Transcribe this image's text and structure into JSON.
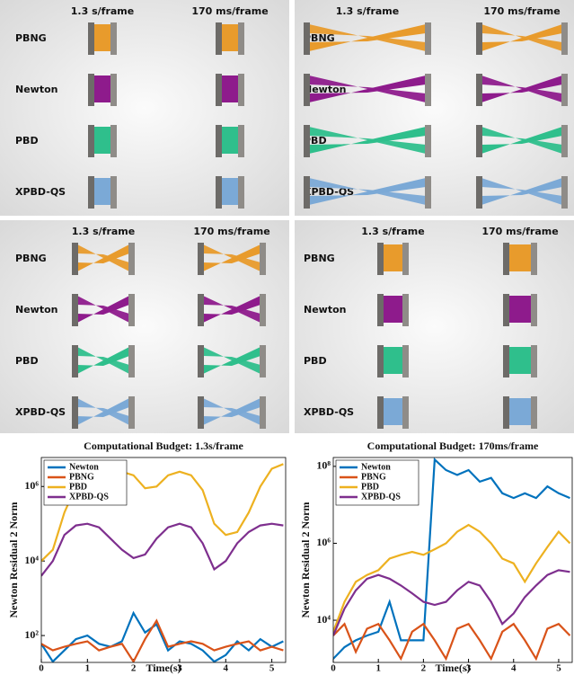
{
  "panels": [
    {
      "column_labels": [
        "1.3 s/frame",
        "170 ms/frame"
      ],
      "row_labels": [
        "PBNG",
        "Newton",
        "PBD",
        "XPBD-QS"
      ]
    },
    {
      "column_labels": [
        "1.3 s/frame",
        "170 ms/frame"
      ],
      "row_labels": [
        "PBNG",
        "Newton",
        "PBD",
        "XPBD-QS"
      ]
    },
    {
      "column_labels": [
        "1.3 s/frame",
        "170 ms/frame"
      ],
      "row_labels": [
        "PBNG",
        "Newton",
        "PBD",
        "XPBD-QS"
      ]
    },
    {
      "column_labels": [
        "1.3 s/frame",
        "170 ms/frame"
      ],
      "row_labels": [
        "PBNG",
        "Newton",
        "PBD",
        "XPBD-QS"
      ]
    }
  ],
  "chart_data": [
    {
      "type": "line",
      "title": "Computational Budget: 1.3s/frame",
      "xlabel": "Time(s)",
      "ylabel": "Newton Residual 2 Norm",
      "log_y": true,
      "legend": "upper-left",
      "x": [
        0,
        0.25,
        0.5,
        0.75,
        1,
        1.25,
        1.5,
        1.75,
        2,
        2.25,
        2.5,
        2.75,
        3,
        3.25,
        3.5,
        3.75,
        4,
        4.25,
        4.5,
        4.75,
        5,
        5.25
      ],
      "xlim": [
        0,
        5.3
      ],
      "xticks": [
        0,
        1,
        2,
        3,
        4,
        5
      ],
      "ylim": [
        19,
        6000000
      ],
      "yticks": [
        {
          "value": 100,
          "label": "10²"
        },
        {
          "value": 10000,
          "label": "10⁴"
        },
        {
          "value": 1000000,
          "label": "10⁶"
        }
      ],
      "series": [
        {
          "name": "Newton",
          "color": "#0072bd",
          "values": [
            60,
            20,
            40,
            80,
            100,
            60,
            50,
            70,
            400,
            120,
            200,
            40,
            70,
            60,
            40,
            20,
            30,
            70,
            40,
            80,
            50,
            70
          ]
        },
        {
          "name": "PBNG",
          "color": "#d95319",
          "values": [
            60,
            40,
            50,
            60,
            70,
            40,
            50,
            60,
            20,
            80,
            250,
            50,
            60,
            70,
            60,
            40,
            50,
            60,
            70,
            40,
            50,
            40
          ]
        },
        {
          "name": "PBD",
          "color": "#edb120",
          "values": [
            10000,
            20000,
            200000,
            1000000,
            1500000,
            1200000,
            1500000,
            2500000,
            2000000,
            900000,
            1000000,
            2000000,
            2500000,
            2000000,
            800000,
            100000,
            50000,
            60000,
            200000,
            1000000,
            3000000,
            4000000
          ]
        },
        {
          "name": "XPBD-QS",
          "color": "#7e2f8e",
          "values": [
            4000,
            10000,
            50000,
            90000,
            100000,
            80000,
            40000,
            20000,
            12000,
            15000,
            40000,
            80000,
            100000,
            80000,
            30000,
            6000,
            10000,
            30000,
            60000,
            90000,
            100000,
            90000
          ]
        }
      ]
    },
    {
      "type": "line",
      "title": "Computational Budget: 170ms/frame",
      "xlabel": "Time(s)",
      "ylabel": "Newton Residual 2 Norm",
      "log_y": true,
      "legend": "upper-left",
      "x": [
        0,
        0.25,
        0.5,
        0.75,
        1,
        1.25,
        1.5,
        1.75,
        2,
        2.25,
        2.5,
        2.75,
        3,
        3.25,
        3.5,
        3.75,
        4,
        4.25,
        4.5,
        4.75,
        5,
        5.25
      ],
      "xlim": [
        0,
        5.3
      ],
      "xticks": [
        0,
        1,
        2,
        3,
        4,
        5
      ],
      "ylim": [
        800,
        170000000
      ],
      "yticks": [
        {
          "value": 10000,
          "label": "10⁴"
        },
        {
          "value": 1000000,
          "label": "10⁶"
        },
        {
          "value": 100000000,
          "label": "10⁸"
        }
      ],
      "series": [
        {
          "name": "Newton",
          "color": "#0072bd",
          "values": [
            1000,
            2000,
            3000,
            4000,
            5000,
            30000,
            3000,
            3000,
            3000,
            150000000,
            80000000,
            60000000,
            80000000,
            40000000,
            50000000,
            20000000,
            15000000,
            20000000,
            15000000,
            30000000,
            20000000,
            15000000
          ]
        },
        {
          "name": "PBNG",
          "color": "#d95319",
          "values": [
            4000,
            8000,
            1500,
            6000,
            8000,
            3000,
            1000,
            5000,
            8000,
            3000,
            1000,
            6000,
            8000,
            3000,
            1000,
            5000,
            8000,
            3000,
            1000,
            6000,
            8000,
            4000
          ]
        },
        {
          "name": "PBD",
          "color": "#edb120",
          "values": [
            5000,
            30000,
            100000,
            150000,
            200000,
            400000,
            500000,
            600000,
            500000,
            700000,
            1000000,
            2000000,
            3000000,
            2000000,
            1000000,
            400000,
            300000,
            100000,
            300000,
            800000,
            2000000,
            1000000
          ]
        },
        {
          "name": "XPBD-QS",
          "color": "#7e2f8e",
          "values": [
            4000,
            20000,
            60000,
            120000,
            150000,
            120000,
            80000,
            50000,
            30000,
            25000,
            30000,
            60000,
            100000,
            80000,
            30000,
            8000,
            15000,
            40000,
            80000,
            150000,
            200000,
            180000
          ]
        }
      ]
    }
  ]
}
